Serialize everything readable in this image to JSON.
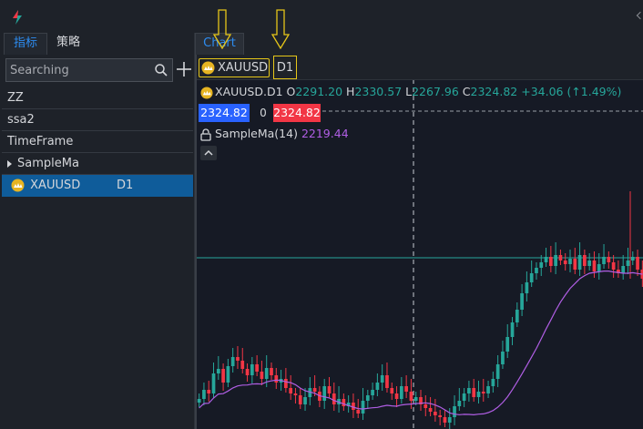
{
  "left_panel": {
    "tabs": [
      "指标",
      "策略"
    ],
    "search_placeholder": "Searching",
    "items": [
      "ZZ",
      "ssa2",
      "TimeFrame",
      "SampleMa"
    ],
    "selected": {
      "symbol": "XAUUSD",
      "timeframe": "D1"
    }
  },
  "chart": {
    "tab_label": "Chart",
    "symbol": "XAUUSD",
    "timeframe": "D1",
    "ohlc": {
      "symbol_tf": "XAUUSD.D1",
      "o_label": "O",
      "o": "2291.20",
      "h_label": "H",
      "h": "2330.57",
      "l_label": "L",
      "l": "2267.96",
      "c_label": "C",
      "c": "2324.82",
      "change": "+34.06 (↑1.49%)"
    },
    "sell_price": "2324.82",
    "spread": "0",
    "buy_price": "2324.82",
    "indicator_label": "SampleMa(14)",
    "indicator_value": "2219.44"
  },
  "colors": {
    "up": "#26a69a",
    "down": "#f23645",
    "ma": "#b05ee4",
    "accent": "#2d8cf0",
    "highlight": "#e6c619"
  }
}
